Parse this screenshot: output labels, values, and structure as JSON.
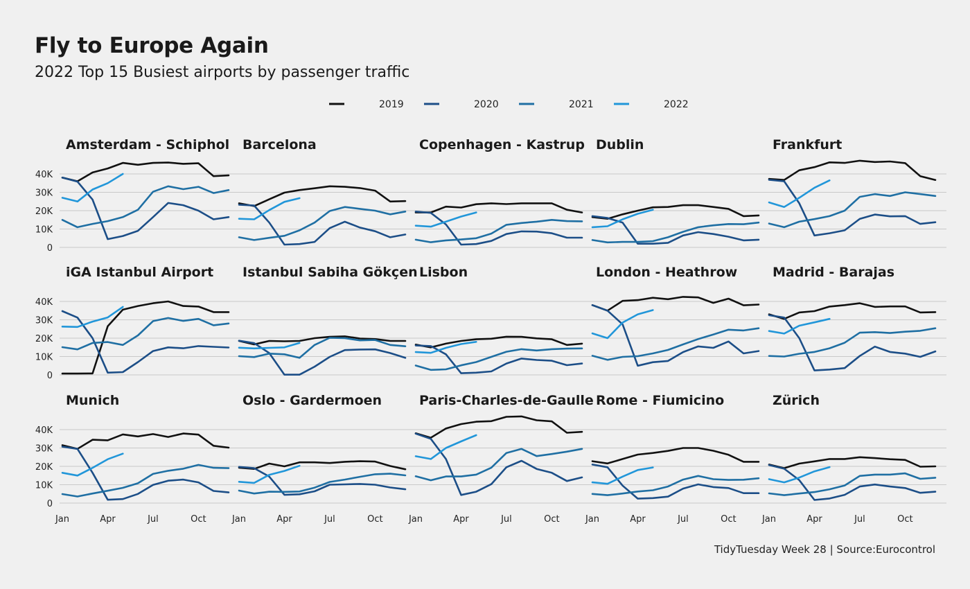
{
  "title": "Fly to Europe Again",
  "subtitle": "2022 Top 15 Busiest airports by passenger traffic",
  "caption": "TidyTuesday Week 28 | Source:Eurocontrol",
  "colors": {
    "2019": "#111111",
    "2020": "#1c4e87",
    "2021": "#1f6fa3",
    "2022": "#2196d9",
    "grid": "#c9c9c9",
    "background": "#f0f0f0"
  },
  "chart_data": {
    "type": "line",
    "facets": "small multiples, 3 rows x 5 columns",
    "legend": {
      "position": "top",
      "entries": [
        "2019",
        "2020",
        "2021",
        "2022"
      ]
    },
    "x": {
      "unit": "month",
      "ticks": [
        1,
        4,
        7,
        10
      ],
      "tick_labels": [
        "Jan",
        "Apr",
        "Jul",
        "Oct"
      ],
      "range": [
        1,
        12
      ]
    },
    "y": {
      "ticks": [
        0,
        10000,
        20000,
        30000,
        40000
      ],
      "tick_labels": [
        "0",
        "10K",
        "20K",
        "30K",
        "40K"
      ],
      "range": [
        0,
        47000
      ]
    },
    "grid": true,
    "panels": [
      {
        "name": "Amsterdam - Schiphol",
        "series": {
          "2019": [
            38000,
            36000,
            40800,
            43000,
            46000,
            45000,
            46000,
            46200,
            45500,
            45800,
            38800,
            39200
          ],
          "2020": [
            38000,
            35800,
            26000,
            4500,
            6200,
            9000,
            16500,
            24200,
            23000,
            20000,
            15300,
            16500
          ],
          "2021": [
            15000,
            11000,
            12800,
            14300,
            16500,
            20500,
            30300,
            33300,
            31700,
            33000,
            29600,
            31200
          ],
          "2022": [
            27000,
            25000,
            31500,
            35000,
            40000
          ]
        }
      },
      {
        "name": "Barcelona",
        "series": {
          "2019": [
            24000,
            22500,
            26200,
            29800,
            31200,
            32200,
            33300,
            33000,
            32300,
            30900,
            25000,
            25200
          ],
          "2020": [
            23200,
            22800,
            13500,
            1500,
            1800,
            3000,
            10500,
            14000,
            10800,
            8800,
            5500,
            7000
          ],
          "2021": [
            5500,
            4000,
            5200,
            6300,
            9300,
            13500,
            19800,
            22000,
            21000,
            20000,
            18000,
            19500
          ],
          "2022": [
            15600,
            15300,
            20300,
            24800,
            26800
          ]
        }
      },
      {
        "name": "Copenhagen - Kastrup",
        "series": {
          "2019": [
            19000,
            19000,
            22200,
            21700,
            23500,
            24000,
            23600,
            24000,
            24000,
            24000,
            20500,
            19000
          ],
          "2020": [
            19500,
            18800,
            12500,
            1500,
            1800,
            3500,
            7300,
            8700,
            8600,
            7700,
            5300,
            5300
          ],
          "2021": [
            4200,
            2800,
            3800,
            4300,
            5000,
            7500,
            12300,
            13300,
            14000,
            15000,
            14300,
            14200
          ],
          "2022": [
            11800,
            11300,
            14000,
            16800,
            19000
          ]
        }
      },
      {
        "name": "Dublin",
        "series": {
          "2019": [
            16500,
            15600,
            18000,
            20000,
            21800,
            22000,
            23000,
            23000,
            22000,
            21000,
            17000,
            17400
          ],
          "2020": [
            17000,
            16000,
            13500,
            2000,
            2000,
            2500,
            6500,
            8300,
            7300,
            5800,
            3800,
            4200
          ],
          "2021": [
            4000,
            2700,
            3000,
            3000,
            3400,
            5500,
            8500,
            11000,
            12000,
            12700,
            12600,
            13500
          ],
          "2022": [
            11000,
            11500,
            15300,
            18300,
            20500
          ]
        }
      },
      {
        "name": "Frankfurt",
        "series": {
          "2019": [
            37300,
            36700,
            42000,
            43700,
            46300,
            46000,
            47200,
            46500,
            46800,
            45900,
            38800,
            36700
          ],
          "2020": [
            36800,
            36000,
            24000,
            6500,
            7700,
            9300,
            15500,
            17900,
            16900,
            17000,
            12800,
            13700
          ],
          "2021": [
            13000,
            11000,
            14000,
            15400,
            17000,
            20000,
            27500,
            29000,
            28000,
            30000,
            29000,
            28000
          ],
          "2022": [
            24500,
            22000,
            27000,
            32500,
            36500
          ]
        }
      },
      {
        "name": "iGA Istanbul Airport",
        "series": {
          "2019": [
            700,
            700,
            800,
            26500,
            35500,
            37500,
            39000,
            40000,
            37500,
            37200,
            34200,
            34200
          ],
          "2020": [
            34700,
            31200,
            20000,
            1200,
            1500,
            7000,
            13000,
            15000,
            14500,
            15700,
            15300,
            14900
          ],
          "2021": [
            15100,
            13900,
            17400,
            17900,
            16300,
            21500,
            29300,
            31000,
            29400,
            30500,
            27000,
            28000
          ],
          "2022": [
            26300,
            26100,
            29000,
            31300,
            37000
          ]
        }
      },
      {
        "name": "Istanbul Sabiha Gökçen",
        "series": {
          "2019": [
            18500,
            16600,
            18500,
            18300,
            18500,
            20000,
            20700,
            21000,
            19800,
            19500,
            18500,
            18500
          ],
          "2020": [
            18600,
            17300,
            11900,
            100,
            100,
            4500,
            9800,
            13500,
            13800,
            13900,
            11900,
            9300
          ],
          "2021": [
            10200,
            9700,
            11600,
            11200,
            9300,
            16300,
            20200,
            20000,
            18800,
            19000,
            16300,
            15600
          ],
          "2022": [
            14800,
            14400,
            14700,
            15000,
            17400
          ]
        }
      },
      {
        "name": "Lisbon",
        "series": {
          "2019": [
            16500,
            15000,
            17000,
            18500,
            19400,
            19700,
            20800,
            20700,
            19900,
            19400,
            16300,
            17000
          ],
          "2020": [
            16000,
            15700,
            11200,
            900,
            1200,
            1900,
            6200,
            8900,
            8100,
            7700,
            5300,
            6200
          ],
          "2021": [
            5100,
            2700,
            3000,
            5200,
            7000,
            9800,
            12600,
            14000,
            13300,
            14000,
            14300,
            14400
          ],
          "2022": [
            12400,
            12000,
            14700,
            16800,
            18000
          ]
        }
      },
      {
        "name": "London - Heathrow",
        "series": {
          "2019": [
            38000,
            35000,
            40300,
            40700,
            42000,
            41200,
            42500,
            42200,
            39200,
            41500,
            37900,
            38300
          ],
          "2020": [
            38000,
            35000,
            27500,
            5000,
            6900,
            7600,
            12400,
            15500,
            14700,
            18200,
            11700,
            13000
          ],
          "2021": [
            10400,
            8200,
            9800,
            10200,
            11700,
            13600,
            16600,
            19500,
            22000,
            24600,
            24200,
            25400
          ],
          "2022": [
            22600,
            20000,
            28500,
            33000,
            35300
          ]
        }
      },
      {
        "name": "Madrid - Barajas",
        "series": {
          "2019": [
            33000,
            30500,
            34000,
            34700,
            37200,
            38000,
            39000,
            37000,
            37300,
            37300,
            34000,
            34200
          ],
          "2020": [
            32500,
            31200,
            20000,
            2400,
            2900,
            3700,
            10300,
            15400,
            12500,
            11600,
            9800,
            12800
          ],
          "2021": [
            10300,
            10000,
            11500,
            12500,
            14500,
            17500,
            23000,
            23300,
            22800,
            23500,
            24000,
            25400
          ],
          "2022": [
            23900,
            22500,
            26800,
            28600,
            30500
          ]
        }
      },
      {
        "name": "Munich",
        "series": {
          "2019": [
            31500,
            29500,
            34500,
            34200,
            37400,
            36300,
            37600,
            36000,
            37900,
            37300,
            31200,
            30200
          ],
          "2020": [
            30700,
            29500,
            16500,
            1800,
            2200,
            5000,
            9900,
            12200,
            12800,
            11300,
            6600,
            5800
          ],
          "2021": [
            4900,
            3600,
            5200,
            6700,
            8300,
            10800,
            15900,
            17600,
            18700,
            20800,
            19200,
            19000
          ],
          "2022": [
            16500,
            15000,
            19200,
            23900,
            26900
          ]
        }
      },
      {
        "name": "Oslo - Gardermoen",
        "series": {
          "2019": [
            19300,
            18600,
            21500,
            20000,
            22200,
            22200,
            21800,
            22500,
            22800,
            22600,
            20200,
            18400
          ],
          "2020": [
            19700,
            19000,
            14400,
            4500,
            4800,
            6400,
            10000,
            10200,
            10400,
            10000,
            8500,
            7500
          ],
          "2021": [
            6800,
            5200,
            6200,
            6100,
            6300,
            8400,
            11500,
            12800,
            14300,
            15700,
            16000,
            15100
          ],
          "2022": [
            11600,
            11000,
            15400,
            17500,
            20300
          ]
        }
      },
      {
        "name": "Paris-Charles-de-Gaulle",
        "series": {
          "2019": [
            38000,
            35600,
            40600,
            43000,
            44300,
            44600,
            47000,
            47200,
            45100,
            44500,
            38300,
            38800
          ],
          "2020": [
            37800,
            35000,
            24000,
            4400,
            6200,
            10300,
            19500,
            23000,
            18600,
            16500,
            12000,
            14000
          ],
          "2021": [
            14600,
            12400,
            14500,
            14500,
            15500,
            19300,
            27300,
            29500,
            25600,
            26700,
            28000,
            29500
          ],
          "2022": [
            25500,
            24000,
            30000,
            33600,
            37000
          ]
        }
      },
      {
        "name": "Rome - Fiumicino",
        "series": {
          "2019": [
            22800,
            21600,
            24000,
            26400,
            27300,
            28400,
            30000,
            30000,
            28500,
            26300,
            22500,
            22500
          ],
          "2020": [
            21000,
            19500,
            9500,
            2400,
            2700,
            3500,
            7900,
            10200,
            8700,
            8200,
            5400,
            5400
          ],
          "2021": [
            5000,
            4300,
            5200,
            6300,
            7000,
            9000,
            12800,
            14800,
            13000,
            12600,
            12700,
            13500
          ],
          "2022": [
            11300,
            10500,
            14400,
            18000,
            19400
          ]
        }
      },
      {
        "name": "Zürich",
        "series": {
          "2019": [
            21000,
            19000,
            21500,
            22700,
            24000,
            24000,
            25000,
            24500,
            23900,
            23500,
            19800,
            20000
          ],
          "2020": [
            20700,
            18700,
            12500,
            1700,
            2500,
            4500,
            9000,
            10100,
            9000,
            8200,
            5600,
            6200
          ],
          "2021": [
            5300,
            4300,
            5200,
            6000,
            7500,
            9600,
            14800,
            15500,
            15500,
            16200,
            13200,
            13800
          ],
          "2022": [
            13000,
            11300,
            13900,
            17300,
            19600
          ]
        }
      }
    ]
  }
}
